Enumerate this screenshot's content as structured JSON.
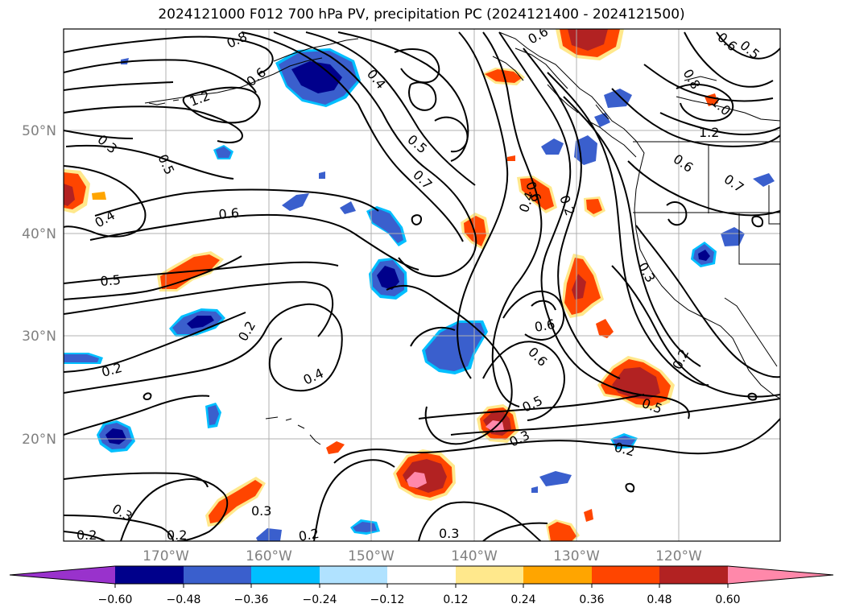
{
  "title": "2024121000 F012 700 hPa PV, precipitation PC (2024121400 - 2024121500)",
  "lat_labels": [
    "50°N",
    "40°N",
    "30°N",
    "20°N"
  ],
  "lon_labels": [
    "170°W",
    "160°W",
    "150°W",
    "140°W",
    "130°W",
    "120°W"
  ],
  "colorbar": {
    "ticks": [
      "−0.60",
      "−0.48",
      "−0.36",
      "−0.24",
      "−0.12",
      "0.12",
      "0.24",
      "0.36",
      "0.48",
      "0.60"
    ],
    "colors": [
      "#9932cc",
      "#00008b",
      "#3a5fcd",
      "#00bfff",
      "#b0e2ff",
      "#ffffff",
      "#ffe88c",
      "#ffa500",
      "#ff4500",
      "#b22222",
      "#ff88aa"
    ]
  },
  "contour_labels": [
    "0.8",
    "0.6",
    "1.2",
    "0.4",
    "0.5",
    "0.6",
    "0.8",
    "1.0",
    "1.2",
    "0.3",
    "0.5",
    "0.4",
    "0.7",
    "0.6",
    "0.6",
    "0.4",
    "0.2",
    "0.5",
    "0.3",
    "0.2",
    "0.4",
    "0.6",
    "0.6",
    "0.5",
    "0.5",
    "0.3",
    "0.2",
    "0.2",
    "0.3",
    "0.2",
    "0.2",
    "0.3",
    "0.2",
    "0.3",
    "0.2",
    "0.7",
    "0.6",
    "0.5",
    "0.6"
  ],
  "colors": {
    "contour": "#000000",
    "grid": "#b0b0b0",
    "coast": "#000000"
  }
}
